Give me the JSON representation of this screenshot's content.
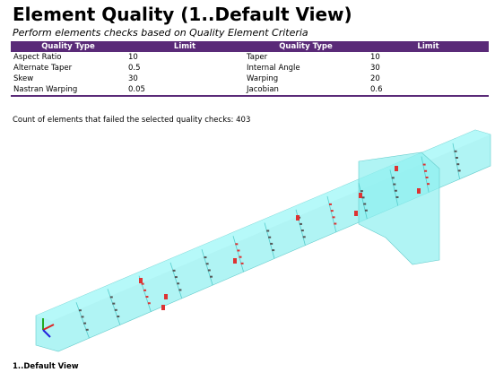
{
  "header": {
    "title": "Element Quality (1..Default View)",
    "subtitle": "Perform elements checks based on Quality Element Criteria"
  },
  "table": {
    "columns": [
      "Quality Type",
      "Limit",
      "Quality Type",
      "Limit"
    ],
    "rows": [
      [
        "Aspect Ratio",
        "10",
        "Taper",
        "10"
      ],
      [
        "Alternate Taper",
        "0.5",
        "Internal Angle",
        "30"
      ],
      [
        "Skew",
        "30",
        "Warping",
        "20"
      ],
      [
        "Nastran Warping",
        "0.05",
        "Jacobian",
        "0.6"
      ]
    ]
  },
  "summary": "Count of elements that failed the selected quality checks: 403",
  "figure": {
    "caption": "1..Default View"
  }
}
